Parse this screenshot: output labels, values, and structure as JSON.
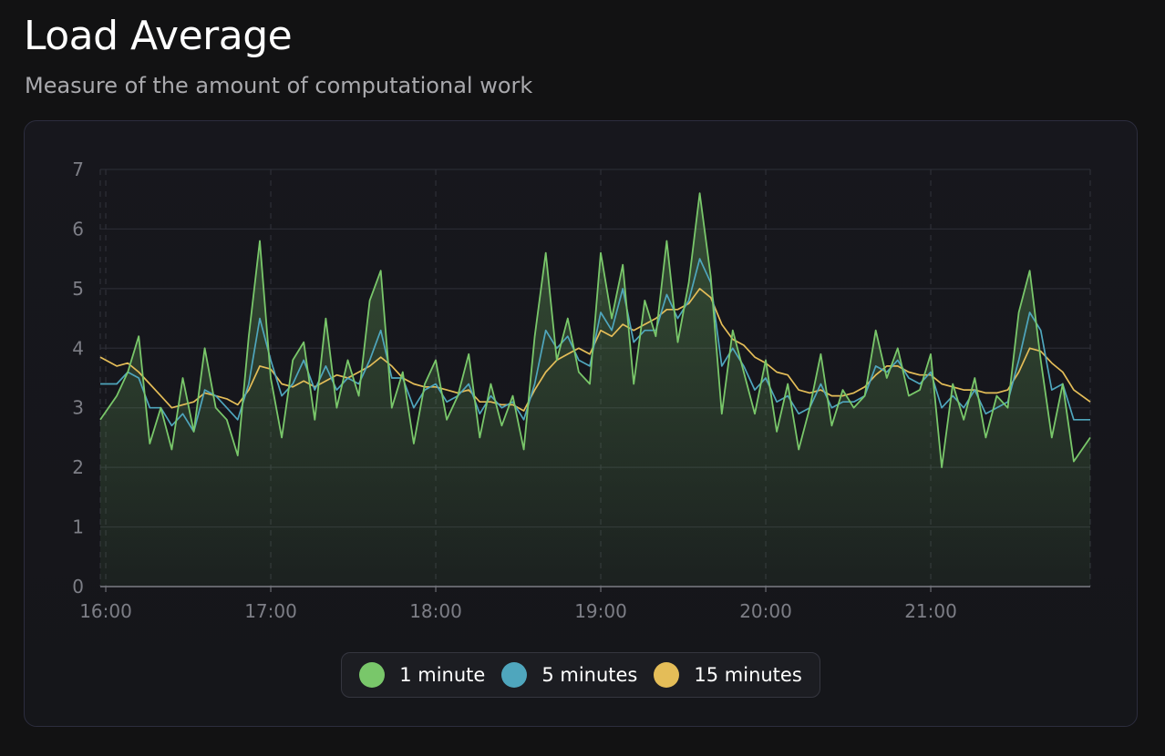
{
  "header": {
    "title": "Load Average",
    "subtitle": "Measure of the amount of computational work"
  },
  "chart_data": {
    "type": "line",
    "x_unit": "time",
    "xlim": [
      "15:58",
      "21:58"
    ],
    "ylim": [
      0,
      7
    ],
    "yticks": [
      "0",
      "1",
      "2",
      "3",
      "4",
      "5",
      "6",
      "7"
    ],
    "xticks": [
      "16:00",
      "17:00",
      "18:00",
      "19:00",
      "20:00",
      "21:00"
    ],
    "grid": true,
    "legend_position": "bottom-center",
    "series": [
      {
        "name": "1 minute",
        "color": "#79c76a",
        "x": [
          "15:58",
          "16:04",
          "16:08",
          "16:12",
          "16:16",
          "16:20",
          "16:24",
          "16:28",
          "16:32",
          "16:36",
          "16:40",
          "16:44",
          "16:48",
          "16:52",
          "16:56",
          "17:00",
          "17:04",
          "17:08",
          "17:12",
          "17:16",
          "17:20",
          "17:24",
          "17:28",
          "17:32",
          "17:36",
          "17:40",
          "17:44",
          "17:48",
          "17:52",
          "17:56",
          "18:00",
          "18:04",
          "18:08",
          "18:12",
          "18:16",
          "18:20",
          "18:24",
          "18:28",
          "18:32",
          "18:36",
          "18:40",
          "18:44",
          "18:48",
          "18:52",
          "18:56",
          "19:00",
          "19:04",
          "19:08",
          "19:12",
          "19:16",
          "19:20",
          "19:24",
          "19:28",
          "19:32",
          "19:36",
          "19:40",
          "19:44",
          "19:48",
          "19:52",
          "19:56",
          "20:00",
          "20:04",
          "20:08",
          "20:12",
          "20:16",
          "20:20",
          "20:24",
          "20:28",
          "20:32",
          "20:36",
          "20:40",
          "20:44",
          "20:48",
          "20:52",
          "20:56",
          "21:00",
          "21:04",
          "21:08",
          "21:12",
          "21:16",
          "21:20",
          "21:24",
          "21:28",
          "21:32",
          "21:36",
          "21:40",
          "21:44",
          "21:48",
          "21:52",
          "21:58"
        ],
        "y": [
          2.8,
          3.2,
          3.6,
          4.2,
          2.4,
          3.0,
          2.3,
          3.5,
          2.6,
          4.0,
          3.0,
          2.8,
          2.2,
          4.2,
          5.8,
          3.5,
          2.5,
          3.8,
          4.1,
          2.8,
          4.5,
          3.0,
          3.8,
          3.2,
          4.8,
          5.3,
          3.0,
          3.6,
          2.4,
          3.4,
          3.8,
          2.8,
          3.2,
          3.9,
          2.5,
          3.4,
          2.7,
          3.2,
          2.3,
          4.2,
          5.6,
          3.8,
          4.5,
          3.6,
          3.4,
          5.6,
          4.5,
          5.4,
          3.4,
          4.8,
          4.2,
          5.8,
          4.1,
          5.1,
          6.6,
          5.2,
          2.9,
          4.3,
          3.6,
          2.9,
          3.8,
          2.6,
          3.4,
          2.3,
          3.0,
          3.9,
          2.7,
          3.3,
          3.0,
          3.2,
          4.3,
          3.5,
          4.0,
          3.2,
          3.3,
          3.9,
          2.0,
          3.4,
          2.8,
          3.5,
          2.5,
          3.2,
          3.0,
          4.6,
          5.3,
          3.8,
          2.5,
          3.4,
          2.1,
          2.5
        ]
      },
      {
        "name": "5 minutes",
        "color": "#4fa6bd",
        "x": [
          "15:58",
          "16:04",
          "16:08",
          "16:12",
          "16:16",
          "16:20",
          "16:24",
          "16:28",
          "16:32",
          "16:36",
          "16:40",
          "16:44",
          "16:48",
          "16:52",
          "16:56",
          "17:00",
          "17:04",
          "17:08",
          "17:12",
          "17:16",
          "17:20",
          "17:24",
          "17:28",
          "17:32",
          "17:36",
          "17:40",
          "17:44",
          "17:48",
          "17:52",
          "17:56",
          "18:00",
          "18:04",
          "18:08",
          "18:12",
          "18:16",
          "18:20",
          "18:24",
          "18:28",
          "18:32",
          "18:36",
          "18:40",
          "18:44",
          "18:48",
          "18:52",
          "18:56",
          "19:00",
          "19:04",
          "19:08",
          "19:12",
          "19:16",
          "19:20",
          "19:24",
          "19:28",
          "19:32",
          "19:36",
          "19:40",
          "19:44",
          "19:48",
          "19:52",
          "19:56",
          "20:00",
          "20:04",
          "20:08",
          "20:12",
          "20:16",
          "20:20",
          "20:24",
          "20:28",
          "20:32",
          "20:36",
          "20:40",
          "20:44",
          "20:48",
          "20:52",
          "20:56",
          "21:00",
          "21:04",
          "21:08",
          "21:12",
          "21:16",
          "21:20",
          "21:24",
          "21:28",
          "21:32",
          "21:36",
          "21:40",
          "21:44",
          "21:48",
          "21:52",
          "21:58"
        ],
        "y": [
          3.4,
          3.4,
          3.6,
          3.5,
          3.0,
          3.0,
          2.7,
          2.9,
          2.6,
          3.3,
          3.2,
          3.0,
          2.8,
          3.4,
          4.5,
          3.8,
          3.2,
          3.4,
          3.8,
          3.3,
          3.7,
          3.3,
          3.5,
          3.4,
          3.8,
          4.3,
          3.5,
          3.5,
          3.0,
          3.3,
          3.4,
          3.1,
          3.2,
          3.4,
          2.9,
          3.2,
          3.0,
          3.1,
          2.8,
          3.4,
          4.3,
          4.0,
          4.2,
          3.8,
          3.7,
          4.6,
          4.3,
          5.0,
          4.1,
          4.3,
          4.3,
          4.9,
          4.5,
          4.8,
          5.5,
          5.1,
          3.7,
          4.0,
          3.7,
          3.3,
          3.5,
          3.1,
          3.2,
          2.9,
          3.0,
          3.4,
          3.0,
          3.1,
          3.1,
          3.2,
          3.7,
          3.6,
          3.8,
          3.5,
          3.4,
          3.6,
          3.0,
          3.2,
          3.0,
          3.3,
          2.9,
          3.0,
          3.1,
          3.8,
          4.6,
          4.3,
          3.3,
          3.4,
          2.8,
          2.8
        ]
      },
      {
        "name": "15 minutes",
        "color": "#e4bd58",
        "x": [
          "15:58",
          "16:04",
          "16:08",
          "16:12",
          "16:16",
          "16:20",
          "16:24",
          "16:28",
          "16:32",
          "16:36",
          "16:40",
          "16:44",
          "16:48",
          "16:52",
          "16:56",
          "17:00",
          "17:04",
          "17:08",
          "17:12",
          "17:16",
          "17:20",
          "17:24",
          "17:28",
          "17:32",
          "17:36",
          "17:40",
          "17:44",
          "17:48",
          "17:52",
          "17:56",
          "18:00",
          "18:04",
          "18:08",
          "18:12",
          "18:16",
          "18:20",
          "18:24",
          "18:28",
          "18:32",
          "18:36",
          "18:40",
          "18:44",
          "18:48",
          "18:52",
          "18:56",
          "19:00",
          "19:04",
          "19:08",
          "19:12",
          "19:16",
          "19:20",
          "19:24",
          "19:28",
          "19:32",
          "19:36",
          "19:40",
          "19:44",
          "19:48",
          "19:52",
          "19:56",
          "20:00",
          "20:04",
          "20:08",
          "20:12",
          "20:16",
          "20:20",
          "20:24",
          "20:28",
          "20:32",
          "20:36",
          "20:40",
          "20:44",
          "20:48",
          "20:52",
          "20:56",
          "21:00",
          "21:04",
          "21:08",
          "21:12",
          "21:16",
          "21:20",
          "21:24",
          "21:28",
          "21:32",
          "21:36",
          "21:40",
          "21:44",
          "21:48",
          "21:52",
          "21:58"
        ],
        "y": [
          3.85,
          3.7,
          3.75,
          3.6,
          3.4,
          3.2,
          3.0,
          3.05,
          3.1,
          3.25,
          3.2,
          3.15,
          3.05,
          3.3,
          3.7,
          3.65,
          3.4,
          3.35,
          3.45,
          3.35,
          3.45,
          3.55,
          3.5,
          3.6,
          3.7,
          3.85,
          3.7,
          3.5,
          3.4,
          3.35,
          3.35,
          3.3,
          3.25,
          3.3,
          3.1,
          3.1,
          3.05,
          3.05,
          2.95,
          3.3,
          3.6,
          3.8,
          3.9,
          4.0,
          3.9,
          4.3,
          4.2,
          4.4,
          4.3,
          4.4,
          4.5,
          4.65,
          4.65,
          4.75,
          5.0,
          4.85,
          4.4,
          4.15,
          4.05,
          3.85,
          3.75,
          3.6,
          3.55,
          3.3,
          3.25,
          3.3,
          3.2,
          3.2,
          3.25,
          3.35,
          3.55,
          3.7,
          3.7,
          3.6,
          3.55,
          3.55,
          3.4,
          3.35,
          3.3,
          3.3,
          3.25,
          3.25,
          3.3,
          3.6,
          4.0,
          3.95,
          3.75,
          3.6,
          3.3,
          3.1
        ]
      }
    ]
  }
}
